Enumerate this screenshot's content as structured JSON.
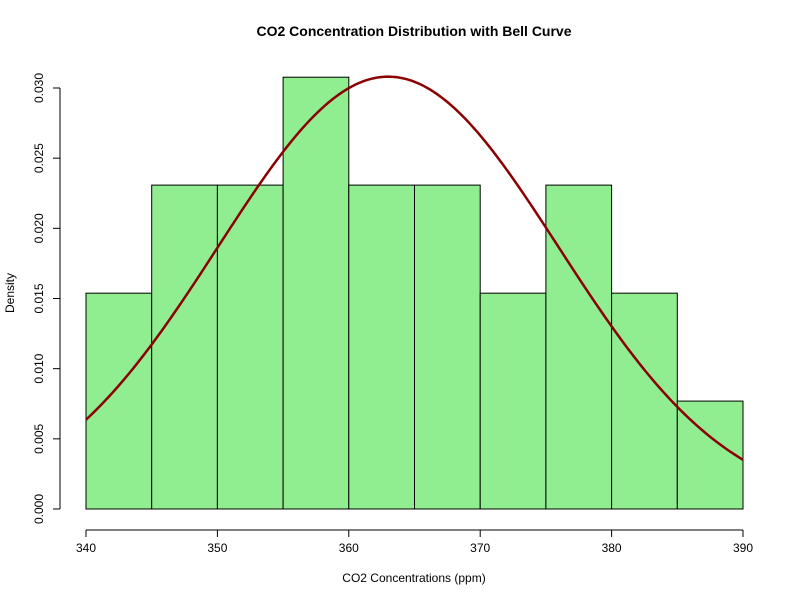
{
  "chart_data": {
    "type": "bar",
    "title": "CO2 Concentration Distribution with Bell Curve",
    "xlabel": "CO2 Concentrations (ppm)",
    "ylabel": "Density",
    "xlim": [
      340,
      390
    ],
    "ylim": [
      0,
      0.031
    ],
    "x_ticks": [
      340,
      350,
      360,
      370,
      380,
      390
    ],
    "x_tick_labels": [
      "340",
      "350",
      "360",
      "370",
      "380",
      "390"
    ],
    "y_ticks": [
      0,
      0.005,
      0.01,
      0.015,
      0.02,
      0.025,
      0.03
    ],
    "y_tick_labels": [
      "0.000",
      "0.005",
      "0.010",
      "0.015",
      "0.020",
      "0.025",
      "0.030"
    ],
    "bins": [
      {
        "x0": 340,
        "x1": 345,
        "density": 0.01538
      },
      {
        "x0": 345,
        "x1": 350,
        "density": 0.02308
      },
      {
        "x0": 350,
        "x1": 355,
        "density": 0.02308
      },
      {
        "x0": 355,
        "x1": 360,
        "density": 0.03077
      },
      {
        "x0": 360,
        "x1": 365,
        "density": 0.02308
      },
      {
        "x0": 365,
        "x1": 370,
        "density": 0.02308
      },
      {
        "x0": 370,
        "x1": 375,
        "density": 0.01538
      },
      {
        "x0": 375,
        "x1": 380,
        "density": 0.02308
      },
      {
        "x0": 380,
        "x1": 385,
        "density": 0.01538
      },
      {
        "x0": 385,
        "x1": 390,
        "density": 0.00769
      }
    ],
    "curve": {
      "type": "normal",
      "mean": 363,
      "sd": 12.95
    },
    "bar_color": "#90EE90",
    "bar_border_color": "#000000",
    "curve_color": "#8B0000",
    "grid": false,
    "legend": "none"
  }
}
